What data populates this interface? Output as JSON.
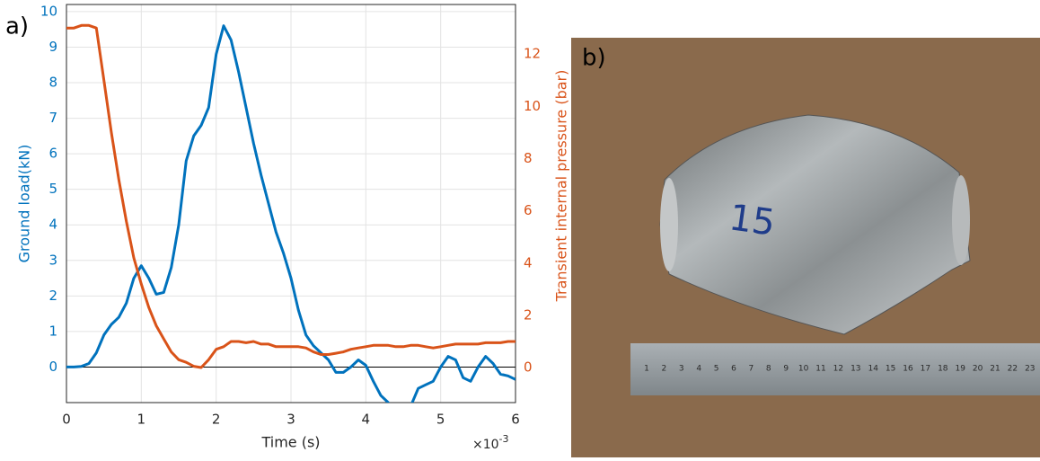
{
  "chart_data": {
    "type": "line",
    "x_label": "Time (s)",
    "x_multiplier": "×10",
    "x_exponent": "-3",
    "y_label": "Ground load(kN)",
    "y2_label": "Transient internal pressure (bar)",
    "x": [
      0,
      0.1,
      0.2,
      0.3,
      0.4,
      0.5,
      0.6,
      0.7,
      0.8,
      0.9,
      1,
      1.1,
      1.2,
      1.3,
      1.4,
      1.5,
      1.6,
      1.7,
      1.8,
      1.9,
      2,
      2.1,
      2.2,
      2.3,
      2.4,
      2.5,
      2.6,
      2.7,
      2.8,
      2.9,
      3,
      3.1,
      3.2,
      3.3,
      3.4,
      3.5,
      3.6,
      3.7,
      3.8,
      3.9,
      4,
      4.1,
      4.2,
      4.3,
      4.4,
      4.5,
      4.6,
      4.7,
      4.8,
      4.9,
      5,
      5.1,
      5.2,
      5.3,
      5.4,
      5.5,
      5.6,
      5.7,
      5.8,
      5.9,
      6
    ],
    "series": [
      {
        "color": "#0072BD",
        "axis": "y",
        "values": [
          0,
          0,
          0.02,
          0.1,
          0.4,
          0.9,
          1.2,
          1.4,
          1.8,
          2.5,
          2.85,
          2.5,
          2.05,
          2.1,
          2.8,
          4.0,
          5.8,
          6.5,
          6.8,
          7.3,
          8.8,
          9.6,
          9.2,
          8.3,
          7.3,
          6.3,
          5.4,
          4.6,
          3.8,
          3.2,
          2.5,
          1.6,
          0.9,
          0.6,
          0.4,
          0.2,
          -0.15,
          -0.15,
          0.0,
          0.2,
          0.05,
          -0.4,
          -0.8,
          -1.0,
          -1.3,
          -1.4,
          -1.1,
          -0.6,
          -0.5,
          -0.4,
          0.0,
          0.3,
          0.2,
          -0.3,
          -0.4,
          0.0,
          0.3,
          0.1,
          -0.2,
          -0.25,
          -0.35
        ]
      },
      {
        "color": "#D95319",
        "axis": "y2",
        "values": [
          13.0,
          13.0,
          13.1,
          13.1,
          13.0,
          11.0,
          9.0,
          7.2,
          5.6,
          4.2,
          3.2,
          2.3,
          1.6,
          1.1,
          0.6,
          0.3,
          0.2,
          0.05,
          0.0,
          0.3,
          0.7,
          0.8,
          1.0,
          1.0,
          0.95,
          1.0,
          0.9,
          0.9,
          0.8,
          0.8,
          0.8,
          0.8,
          0.75,
          0.6,
          0.5,
          0.5,
          0.55,
          0.6,
          0.7,
          0.75,
          0.8,
          0.85,
          0.85,
          0.85,
          0.8,
          0.8,
          0.85,
          0.85,
          0.8,
          0.75,
          0.8,
          0.85,
          0.9,
          0.9,
          0.9,
          0.9,
          0.95,
          0.95,
          0.95,
          1.0,
          1.0
        ]
      }
    ],
    "xlim": [
      0,
      6
    ],
    "xticks": [
      0,
      1,
      2,
      3,
      4,
      5,
      6
    ],
    "ylim": [
      -1,
      10.2
    ],
    "yticks": [
      0,
      1,
      2,
      3,
      4,
      5,
      6,
      7,
      8,
      9,
      10
    ],
    "y2lim": [
      -1.34,
      13.9
    ],
    "y2ticks": [
      0,
      2,
      4,
      6,
      8,
      10,
      12
    ],
    "grid": true
  },
  "panel_labels": [
    "a)",
    "b)"
  ],
  "photo": {
    "object_label": "15",
    "ruler_labels": [
      "1",
      "2",
      "3",
      "4",
      "5",
      "6",
      "7",
      "8",
      "9",
      "10",
      "11",
      "12",
      "13",
      "14",
      "15",
      "16",
      "17",
      "18",
      "19",
      "20",
      "21",
      "22",
      "23"
    ]
  }
}
